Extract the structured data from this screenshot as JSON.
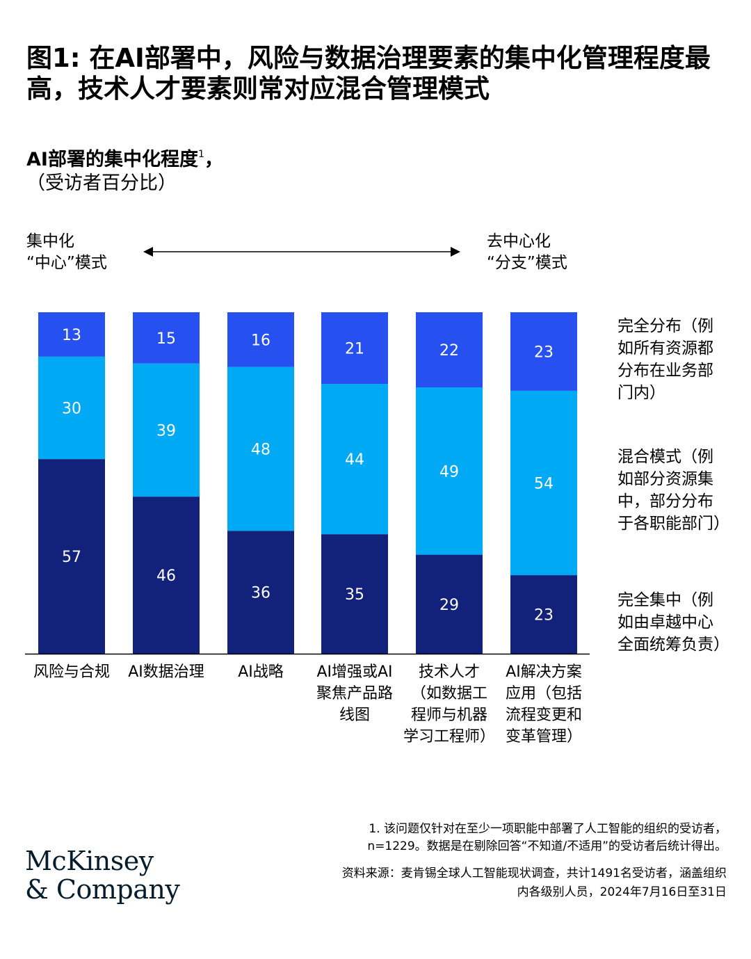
{
  "title": "图1: 在AI部署中，风险与数据治理要素的集中化管理程度最高，技术人才要素则常对应混合管理模式",
  "subtitle": {
    "main": "AI部署的集中化程度",
    "superscript": "1",
    "suffix": "，",
    "unit": "（受访者百分比）"
  },
  "scale": {
    "left": [
      "集中化",
      "“中心”模式"
    ],
    "right": [
      "去中心化",
      "“分支”模式"
    ]
  },
  "colors": {
    "fully_centralized": "#12217a",
    "hybrid": "#00a9f4",
    "fully_distributed": "#2651f0",
    "axis": "#000000"
  },
  "chart_data": {
    "type": "bar",
    "stacked": true,
    "orientation": "vertical",
    "categories": [
      [
        "风险与合规"
      ],
      [
        "AI数据治理"
      ],
      [
        "AI战略"
      ],
      [
        "AI增强或AI",
        "聚焦产品路",
        "线图"
      ],
      [
        "技术人才",
        "（如数据工",
        "程师与机器",
        "学习工程师）"
      ],
      [
        "AI解决方案",
        "应用（包括",
        "流程变更和",
        "变革管理）"
      ]
    ],
    "series": [
      {
        "key": "fully_centralized",
        "values": [
          57,
          46,
          36,
          35,
          29,
          23
        ],
        "legend": [
          "完全集中（例",
          "如由卓越中心",
          "全面统筹负责）"
        ]
      },
      {
        "key": "hybrid",
        "values": [
          30,
          39,
          48,
          44,
          49,
          54
        ],
        "legend": [
          "混合模式（例",
          "如部分资源集",
          "中，部分分布",
          "于各职能部门）"
        ]
      },
      {
        "key": "fully_distributed",
        "values": [
          13,
          15,
          16,
          21,
          22,
          23
        ],
        "legend": [
          "完全分布（例",
          "如所有资源都",
          "分布在业务部",
          "门内）"
        ]
      }
    ],
    "ylim": [
      0,
      100
    ],
    "grid": false,
    "legend_position": "right"
  },
  "footnote": [
    "1.   该问题仅针对在至少一项职能中部署了人工智能的组织的受访者，",
    "n=1229。数据是在剔除回答“不知道/不适用”的受访者后统计得出。"
  ],
  "source": [
    "资料来源：麦肯锡全球人工智能现状调查，共计1491名受访者，涵盖组织",
    "内各级别人员，2024年7月16日至31日"
  ],
  "logo": [
    "McKinsey",
    "& Company"
  ]
}
